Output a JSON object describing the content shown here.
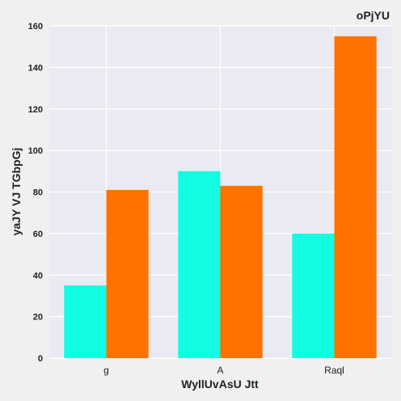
{
  "chart_data": {
    "type": "bar",
    "title": "oPjYU",
    "xlabel": "WyllUvAsU Jtt",
    "ylabel": "yaJY VJ TGbpGj",
    "categories": [
      "g",
      "A",
      "Raql"
    ],
    "series": [
      {
        "values": [
          35,
          90,
          60
        ],
        "color": "#12fde2"
      },
      {
        "values": [
          81,
          83,
          155
        ],
        "color": "#ff7100"
      }
    ],
    "ylim": [
      0,
      160
    ],
    "yticks": [
      0,
      20,
      40,
      60,
      80,
      100,
      120,
      140,
      160
    ],
    "grid": true,
    "legend": "none"
  }
}
